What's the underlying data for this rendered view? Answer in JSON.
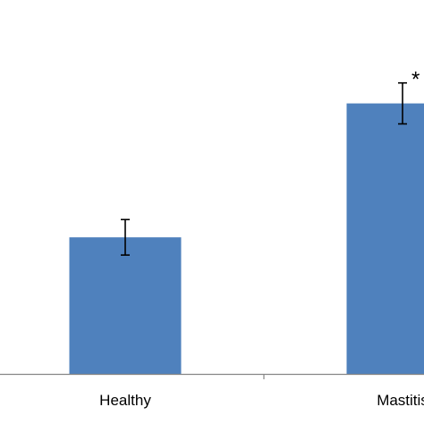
{
  "chart_data": {
    "type": "bar",
    "categories": [
      "Healthy",
      "Mastitis"
    ],
    "values": [
      1.0,
      1.98
    ],
    "errors": [
      0.13,
      0.15
    ],
    "annotations": [
      null,
      "*"
    ],
    "ylim": [
      0,
      2.2
    ],
    "grid": false,
    "colors": {
      "bar": "#4f81bd",
      "axis": "#868686",
      "text": "#000000"
    }
  }
}
